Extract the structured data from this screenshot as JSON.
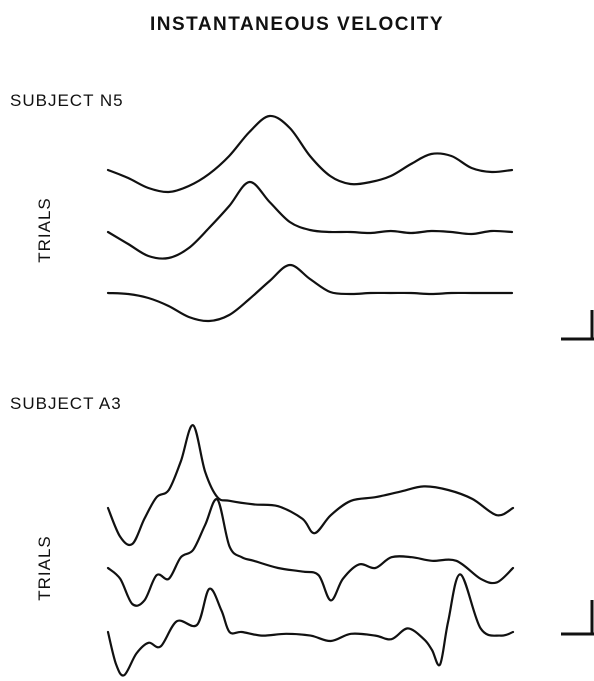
{
  "title": "INSTANTANEOUS VELOCITY",
  "colors": {
    "trace": "#111111",
    "background": "#ffffff"
  },
  "chart_data": [
    {
      "type": "line",
      "panel_label": "SUBJECT N5",
      "ylabel": "TRIALS",
      "series": [
        {
          "x": [
            0,
            0.05,
            0.1,
            0.15,
            0.2,
            0.25,
            0.3,
            0.35,
            0.4,
            0.45,
            0.5,
            0.55,
            0.6,
            0.65,
            0.7,
            0.75,
            0.8,
            0.85,
            0.9,
            0.95,
            1.0
          ],
          "values": [
            0.0,
            -0.16,
            -0.36,
            -0.44,
            -0.32,
            -0.08,
            0.28,
            0.76,
            1.08,
            0.84,
            0.28,
            -0.12,
            -0.28,
            -0.24,
            -0.12,
            0.12,
            0.32,
            0.28,
            0.04,
            -0.04,
            0.0
          ]
        },
        {
          "x": [
            0,
            0.05,
            0.1,
            0.15,
            0.2,
            0.25,
            0.3,
            0.35,
            0.4,
            0.45,
            0.5,
            0.55,
            0.6,
            0.65,
            0.7,
            0.75,
            0.8,
            0.85,
            0.9,
            0.95,
            1.0
          ],
          "values": [
            0.0,
            -0.24,
            -0.48,
            -0.52,
            -0.32,
            0.08,
            0.52,
            1.0,
            0.6,
            0.2,
            0.04,
            0.0,
            0.0,
            -0.02,
            0.02,
            -0.02,
            0.02,
            0.0,
            -0.04,
            0.02,
            0.0
          ]
        },
        {
          "x": [
            0,
            0.05,
            0.1,
            0.15,
            0.2,
            0.25,
            0.3,
            0.35,
            0.4,
            0.45,
            0.5,
            0.55,
            0.6,
            0.65,
            0.7,
            0.75,
            0.8,
            0.85,
            0.9,
            0.95,
            1.0
          ],
          "values": [
            0.0,
            -0.02,
            -0.1,
            -0.26,
            -0.48,
            -0.56,
            -0.44,
            -0.12,
            0.24,
            0.56,
            0.28,
            0.02,
            -0.02,
            0.0,
            0.0,
            0.0,
            -0.02,
            0.0,
            0.0,
            0.0,
            0.0
          ]
        }
      ]
    },
    {
      "type": "line",
      "panel_label": "SUBJECT A3",
      "ylabel": "TRIALS",
      "series": [
        {
          "x": [
            0,
            0.03,
            0.06,
            0.09,
            0.12,
            0.15,
            0.18,
            0.21,
            0.24,
            0.27,
            0.3,
            0.36,
            0.42,
            0.48,
            0.51,
            0.55,
            0.6,
            0.66,
            0.72,
            0.78,
            0.84,
            0.9,
            0.96,
            1.0
          ],
          "values": [
            0.0,
            -0.8,
            -1.0,
            -0.3,
            0.3,
            0.5,
            1.3,
            2.3,
            1.0,
            0.3,
            0.2,
            0.1,
            0.05,
            -0.3,
            -0.7,
            -0.2,
            0.2,
            0.3,
            0.45,
            0.6,
            0.5,
            0.25,
            -0.2,
            0.0
          ]
        },
        {
          "x": [
            0,
            0.03,
            0.06,
            0.09,
            0.12,
            0.15,
            0.18,
            0.21,
            0.24,
            0.27,
            0.3,
            0.33,
            0.36,
            0.42,
            0.48,
            0.52,
            0.55,
            0.58,
            0.62,
            0.66,
            0.7,
            0.75,
            0.8,
            0.86,
            0.92,
            0.96,
            1.0
          ],
          "values": [
            0.0,
            -0.3,
            -1.0,
            -0.9,
            -0.2,
            -0.3,
            0.3,
            0.5,
            1.2,
            1.9,
            0.6,
            0.3,
            0.2,
            0.0,
            -0.1,
            -0.2,
            -0.9,
            -0.3,
            0.1,
            0.0,
            0.3,
            0.3,
            0.2,
            0.2,
            -0.3,
            -0.4,
            0.0
          ]
        },
        {
          "x": [
            0,
            0.02,
            0.04,
            0.07,
            0.1,
            0.13,
            0.17,
            0.22,
            0.25,
            0.28,
            0.3,
            0.33,
            0.38,
            0.44,
            0.5,
            0.55,
            0.6,
            0.66,
            0.7,
            0.74,
            0.78,
            0.8,
            0.82,
            0.84,
            0.87,
            0.92,
            0.97,
            1.0
          ],
          "values": [
            0.0,
            -0.9,
            -1.2,
            -0.6,
            -0.3,
            -0.4,
            0.3,
            0.2,
            1.2,
            0.6,
            0.0,
            0.0,
            -0.1,
            -0.05,
            -0.1,
            -0.25,
            -0.05,
            -0.1,
            -0.2,
            0.1,
            -0.2,
            -0.5,
            -0.9,
            0.3,
            1.6,
            0.1,
            -0.1,
            0.0
          ]
        }
      ]
    }
  ]
}
